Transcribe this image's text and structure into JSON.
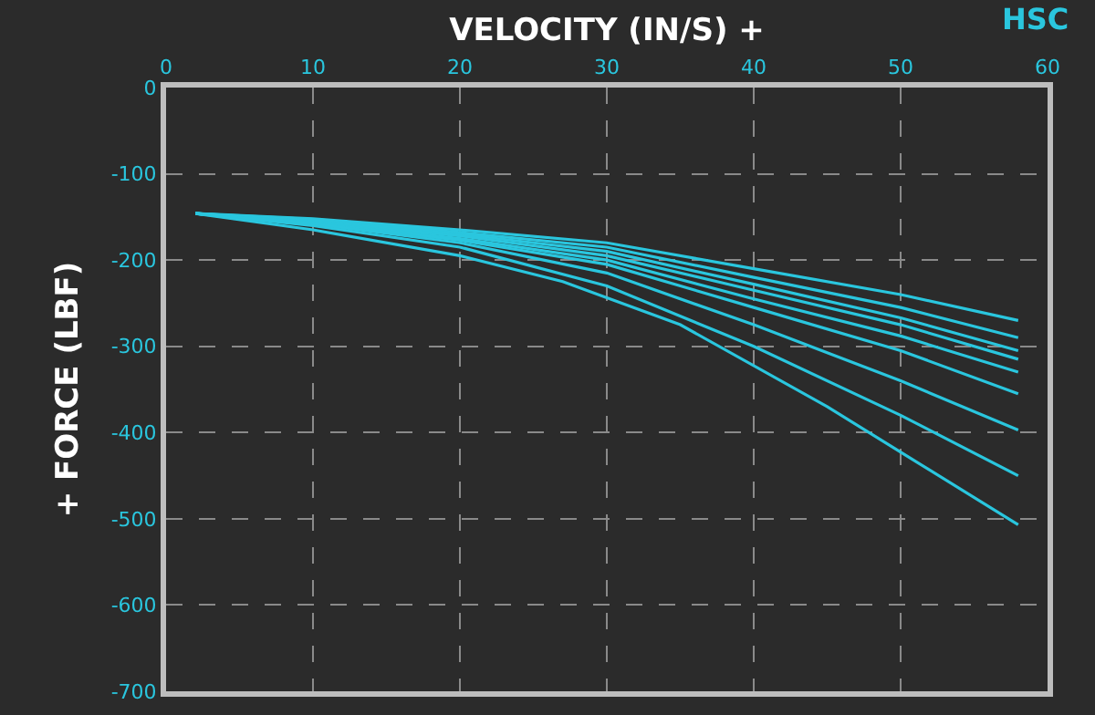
{
  "chart_data": {
    "type": "line",
    "xlabel": "VELOCITY (IN/S) +",
    "ylabel": "+ FORCE (LBF)",
    "annotations": [
      "HSC"
    ],
    "xlim": [
      0,
      60
    ],
    "xticks": [
      0,
      10,
      20,
      30,
      40,
      50,
      60
    ],
    "ylim": [
      -700,
      0
    ],
    "yticks": [
      0,
      -100,
      -200,
      -300,
      -400,
      -500,
      -600,
      -700
    ],
    "grid": true,
    "marker": "none",
    "line_style": "solid",
    "series": [
      {
        "color": "#2ac6de",
        "x": [
          2,
          10,
          20,
          30,
          40,
          50,
          58
        ],
        "values": [
          -146,
          -152,
          -165,
          -180,
          -210,
          -240,
          -270
        ]
      },
      {
        "color": "#2ac6de",
        "x": [
          2,
          10,
          20,
          30,
          40,
          50,
          58
        ],
        "values": [
          -146,
          -153,
          -168,
          -185,
          -220,
          -255,
          -290
        ]
      },
      {
        "color": "#2ac6de",
        "x": [
          2,
          10,
          20,
          30,
          40,
          50,
          58
        ],
        "values": [
          -146,
          -154,
          -170,
          -190,
          -228,
          -267,
          -305
        ]
      },
      {
        "color": "#2ac6de",
        "x": [
          2,
          10,
          20,
          30,
          40,
          50,
          58
        ],
        "values": [
          -146,
          -155,
          -172,
          -195,
          -235,
          -275,
          -315
        ]
      },
      {
        "color": "#2ac6de",
        "x": [
          2,
          10,
          20,
          30,
          40,
          50,
          58
        ],
        "values": [
          -146,
          -156,
          -175,
          -200,
          -245,
          -288,
          -330
        ]
      },
      {
        "color": "#2ac6de",
        "x": [
          2,
          10,
          20,
          30,
          40,
          50,
          58
        ],
        "values": [
          -146,
          -157,
          -177,
          -205,
          -255,
          -305,
          -355
        ]
      },
      {
        "color": "#2ac6de",
        "x": [
          2,
          10,
          20,
          30,
          40,
          50,
          58
        ],
        "values": [
          -146,
          -158,
          -180,
          -215,
          -275,
          -340,
          -397
        ]
      },
      {
        "color": "#2ac6de",
        "x": [
          2,
          10,
          20,
          30,
          40,
          50,
          58
        ],
        "values": [
          -146,
          -160,
          -185,
          -230,
          -300,
          -380,
          -450
        ]
      },
      {
        "color": "#2ac6de",
        "x": [
          2,
          10,
          20,
          27,
          35,
          45,
          58
        ],
        "values": [
          -146,
          -165,
          -195,
          -225,
          -275,
          -370,
          -507
        ]
      }
    ]
  }
}
